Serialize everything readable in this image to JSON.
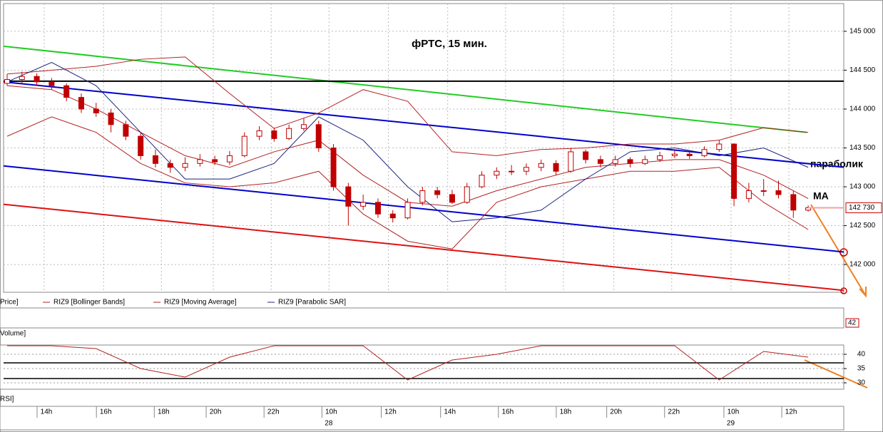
{
  "chart_data": {
    "type": "candlestick",
    "title": "фРТС,  15 мин.",
    "annotations": [
      "параболик",
      "МА"
    ],
    "legend": [
      "Price]",
      "RIZ9 [Bollinger Bands]",
      "RIZ9 [Moving Average]",
      "RIZ9 [Parabolic SAR]"
    ],
    "volume_label": "Volume]",
    "volume_last": 42,
    "rsi_label": "RSI]",
    "candle_color": "#c00000",
    "candles": [
      [
        144330,
        144450,
        144300,
        144380
      ],
      [
        144380,
        144480,
        144330,
        144420
      ],
      [
        144420,
        144460,
        144300,
        144350
      ],
      [
        144350,
        144400,
        144250,
        144300
      ],
      [
        144300,
        144330,
        144100,
        144150
      ],
      [
        144150,
        144200,
        143950,
        144000
      ],
      [
        144000,
        144080,
        143900,
        143950
      ],
      [
        143950,
        144000,
        143700,
        143800
      ],
      [
        143800,
        143850,
        143600,
        143650
      ],
      [
        143650,
        143700,
        143350,
        143400
      ],
      [
        143400,
        143480,
        143250,
        143300
      ],
      [
        143300,
        143350,
        143180,
        143250
      ],
      [
        143250,
        143380,
        143200,
        143300
      ],
      [
        143300,
        143420,
        143260,
        143350
      ],
      [
        143350,
        143400,
        143280,
        143320
      ],
      [
        143320,
        143460,
        143280,
        143400
      ],
      [
        143400,
        143700,
        143380,
        143650
      ],
      [
        143650,
        143780,
        143600,
        143720
      ],
      [
        143720,
        143760,
        143580,
        143620
      ],
      [
        143620,
        143800,
        143600,
        143750
      ],
      [
        143750,
        143880,
        143720,
        143800
      ],
      [
        143800,
        143850,
        143450,
        143500
      ],
      [
        143500,
        143550,
        142950,
        143000
      ],
      [
        143000,
        143050,
        142500,
        142750
      ],
      [
        142750,
        142900,
        142700,
        142800
      ],
      [
        142800,
        142850,
        142600,
        142650
      ],
      [
        142650,
        142700,
        142540,
        142600
      ],
      [
        142600,
        142850,
        142580,
        142800
      ],
      [
        142800,
        143000,
        142760,
        142950
      ],
      [
        142950,
        143000,
        142850,
        142900
      ],
      [
        142900,
        142960,
        142780,
        142800
      ],
      [
        142800,
        143050,
        142780,
        143000
      ],
      [
        143000,
        143200,
        142980,
        143150
      ],
      [
        143150,
        143250,
        143100,
        143200
      ],
      [
        143200,
        143280,
        143150,
        143200
      ],
      [
        143200,
        143300,
        143150,
        143250
      ],
      [
        143250,
        143350,
        143200,
        143300
      ],
      [
        143300,
        143340,
        143150,
        143200
      ],
      [
        143200,
        143500,
        143180,
        143450
      ],
      [
        143450,
        143480,
        143300,
        143350
      ],
      [
        143350,
        143400,
        143250,
        143300
      ],
      [
        143300,
        143400,
        143260,
        143350
      ],
      [
        143350,
        143380,
        143250,
        143300
      ],
      [
        143300,
        143400,
        143280,
        143350
      ],
      [
        143350,
        143450,
        143320,
        143400
      ],
      [
        143400,
        143470,
        143370,
        143420
      ],
      [
        143420,
        143450,
        143360,
        143400
      ],
      [
        143400,
        143520,
        143380,
        143480
      ],
      [
        143480,
        143600,
        143450,
        143550
      ],
      [
        143550,
        143560,
        142750,
        142850
      ],
      [
        142850,
        143050,
        142800,
        142950
      ],
      [
        142950,
        143100,
        142880,
        142950
      ],
      [
        142950,
        143080,
        142850,
        142900
      ],
      [
        142900,
        142950,
        142600,
        142700
      ],
      [
        142700,
        142760,
        142680,
        142730
      ]
    ],
    "indicator_x": [
      0,
      3,
      6,
      9,
      12,
      15,
      18,
      21,
      24,
      27,
      30,
      33,
      36,
      39,
      42,
      45,
      48,
      51,
      54
    ],
    "series": [
      {
        "name": "RIZ9 [Bollinger Bands]",
        "color": "#b22222",
        "values": [
          144450,
          144500,
          144550,
          144640,
          144670,
          144200,
          143750,
          143950,
          144250,
          144100,
          143450,
          143400,
          143480,
          143500,
          143550,
          143550,
          143600,
          143760,
          143700
        ]
      },
      {
        "name": "RIZ9 [Bollinger Bands]",
        "color": "#b22222",
        "values": [
          143650,
          143900,
          143700,
          143300,
          143050,
          143000,
          143050,
          143200,
          142650,
          142300,
          142200,
          142800,
          143000,
          143100,
          143200,
          143200,
          143250,
          142800,
          142450
        ]
      },
      {
        "name": "RIZ9 [Moving Average]",
        "color": "#b22222",
        "values": [
          144300,
          144250,
          144000,
          143700,
          143400,
          143250,
          143450,
          143600,
          143150,
          142800,
          142750,
          142950,
          143100,
          143250,
          143300,
          143350,
          143350,
          143150,
          142850
        ]
      },
      {
        "name": "RIZ9 [Parabolic SAR]",
        "color": "#1a237e",
        "values": [
          144350,
          144600,
          144300,
          143700,
          143100,
          143100,
          143300,
          143900,
          143600,
          143000,
          142550,
          142600,
          142700,
          143100,
          143450,
          143500,
          143400,
          143500,
          143250
        ]
      }
    ],
    "trendlines": [
      {
        "color": "#22cc22",
        "x": [
          -0.24,
          53.9
        ],
        "values": [
          144808,
          143700
        ]
      },
      {
        "color": "#000000",
        "x": [
          -0.24,
          56.4
        ],
        "values": [
          144359,
          144359
        ]
      },
      {
        "color": "#0000cc",
        "x": [
          -0.24,
          56.4
        ],
        "values": [
          144350,
          143251
        ]
      },
      {
        "color": "#0000cc",
        "x": [
          -0.24,
          56.4
        ],
        "values": [
          143269,
          142161
        ]
      },
      {
        "color": "#dd1111",
        "x": [
          -0.24,
          56.4
        ],
        "values": [
          142775,
          141667
        ]
      }
    ],
    "price_tag": {
      "value": 142730,
      "label": "142 730"
    },
    "xlim": [
      -0.24,
      56.4
    ],
    "ylim": [
      141643,
      145357
    ],
    "yticks": [
      {
        "value": 145000,
        "label": "145 000"
      },
      {
        "value": 144500,
        "label": "144 500"
      },
      {
        "value": 144000,
        "label": "144 000"
      },
      {
        "value": 143500,
        "label": "143 500"
      },
      {
        "value": 143000,
        "label": "143 000"
      },
      {
        "value": 142500,
        "label": "142 500"
      },
      {
        "value": 142000,
        "label": "142 000"
      }
    ],
    "grid": true,
    "xticks": [
      {
        "value": 2.5,
        "label": "14h"
      },
      {
        "value": 6.5,
        "label": "16h"
      },
      {
        "value": 10.4,
        "label": "18h"
      },
      {
        "value": 13.9,
        "label": "20h"
      },
      {
        "value": 17.8,
        "label": "22h"
      },
      {
        "value": 21.7,
        "label": "10h"
      },
      {
        "value": 25.7,
        "label": "12h"
      },
      {
        "value": 29.7,
        "label": "14h"
      },
      {
        "value": 33.6,
        "label": "16h"
      },
      {
        "value": 37.5,
        "label": "18h"
      },
      {
        "value": 40.9,
        "label": "20h"
      },
      {
        "value": 44.8,
        "label": "22h"
      },
      {
        "value": 48.8,
        "label": "10h"
      },
      {
        "value": 52.7,
        "label": "12h"
      }
    ],
    "date_ticks": [
      {
        "value": 21.7,
        "label": "28"
      },
      {
        "value": 48.8,
        "label": "29"
      }
    ],
    "rsi": [
      43,
      43,
      42,
      35,
      32,
      39,
      43,
      43,
      43,
      31,
      38,
      40,
      43,
      43,
      43,
      43,
      31,
      41,
      39
    ],
    "rsi_color": "#b22222",
    "rsi_ylim": [
      27.75,
      43.25
    ],
    "rsi_yticks": [
      40,
      35,
      30
    ],
    "rsi_levels": [
      37,
      31.5
    ]
  }
}
